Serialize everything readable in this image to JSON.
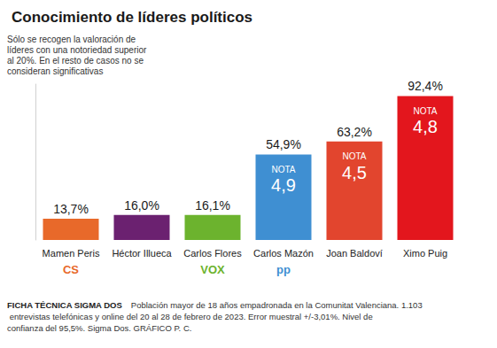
{
  "chart_data": {
    "type": "bar",
    "title": "Conocimiento de líderes políticos",
    "subtitle": "Sólo se recogen la valoración de líderes con una notoriedad superior al 20%. En el resto de casos no se consideran significativas",
    "categories": [
      "Mamen Peris",
      "Héctor Illueca",
      "Carlos Flores",
      "Carlos Mazón",
      "Joan Baldoví",
      "Ximo Puig"
    ],
    "values": [
      13.7,
      16.0,
      16.1,
      54.9,
      63.2,
      92.4
    ],
    "value_labels": [
      "13,7%",
      "16,0%",
      "16,1%",
      "54,9%",
      "63,2%",
      "92,4%"
    ],
    "colors": [
      "#e8692a",
      "#6b2170",
      "#6cb32e",
      "#3f8fd2",
      "#e2452e",
      "#e3161d"
    ],
    "party_labels": [
      "CS",
      null,
      "VOX",
      "pp",
      null,
      null
    ],
    "note_label": "NOTA",
    "notes": [
      null,
      null,
      null,
      4.9,
      4.5,
      4.8
    ],
    "note_labels": [
      null,
      null,
      null,
      "4,9",
      "4,5",
      "4,8"
    ],
    "ylim": [
      0,
      100
    ],
    "data_labels": true,
    "tick_labels": "x",
    "grid": false,
    "footer_heading": "FICHA TÉCNICA SIGMA DOS",
    "footer": "Población mayor de 18 años empadronada en la Comunitat Valenciana. 1.103 entrevistas telefónicas y online del 20 al 28 de febrero de 2023. Error muestral +/-3,01%. Nivel de confianza del 95,5%. Sigma Dos. GRÁFICO P. C."
  }
}
